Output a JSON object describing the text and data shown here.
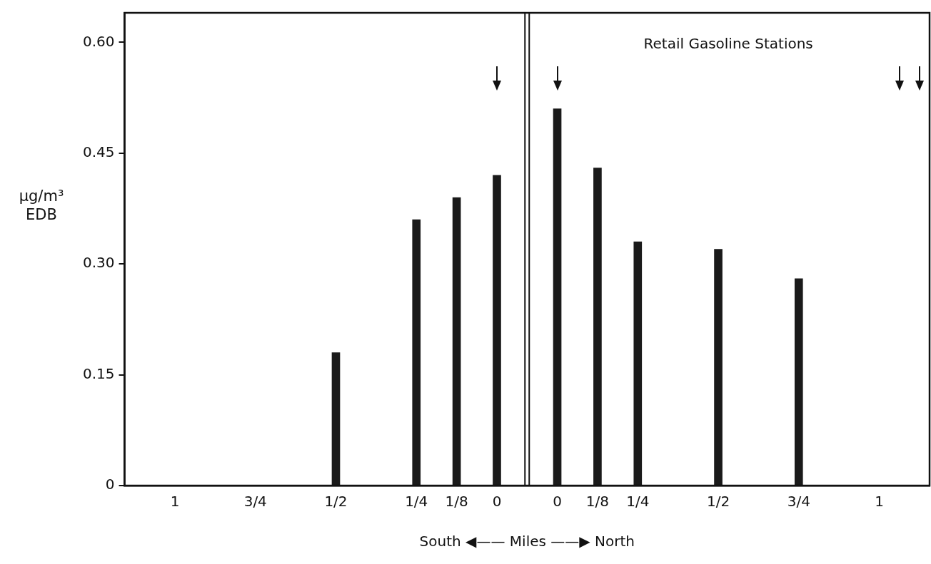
{
  "chart_data": {
    "type": "bar",
    "categories": [
      null,
      null,
      "1",
      null,
      null,
      null,
      "3/4",
      null,
      null,
      null,
      "1/2",
      null,
      null,
      null,
      "1/4",
      null,
      "1/8",
      null,
      "0",
      null,
      null,
      "0",
      null,
      "1/8",
      null,
      "1/4",
      null,
      null,
      null,
      "1/2",
      null,
      null,
      null,
      "3/4",
      null,
      null,
      null,
      "1",
      null,
      null
    ],
    "values": [
      null,
      null,
      null,
      null,
      null,
      null,
      null,
      null,
      null,
      null,
      0.18,
      null,
      null,
      null,
      0.36,
      null,
      0.39,
      null,
      0.42,
      null,
      null,
      0.51,
      null,
      0.43,
      null,
      0.33,
      null,
      null,
      null,
      0.32,
      null,
      null,
      null,
      0.28,
      null,
      null,
      null,
      null,
      null,
      null
    ],
    "color": "#1a1a1a",
    "xlabel": "South ◀—— Miles ——▶ North",
    "ylabel": "μg/m³ EDB",
    "annotations": [
      "Retail Gasoline Stations"
    ],
    "ylim": [
      0,
      0.64
    ],
    "yticks": [
      0,
      0.15,
      {
        "value": 0.3,
        "label": "0.30"
      },
      0.45,
      {
        "value": 0.6,
        "label": "0.60"
      }
    ],
    "grid": false,
    "legend": false
  }
}
